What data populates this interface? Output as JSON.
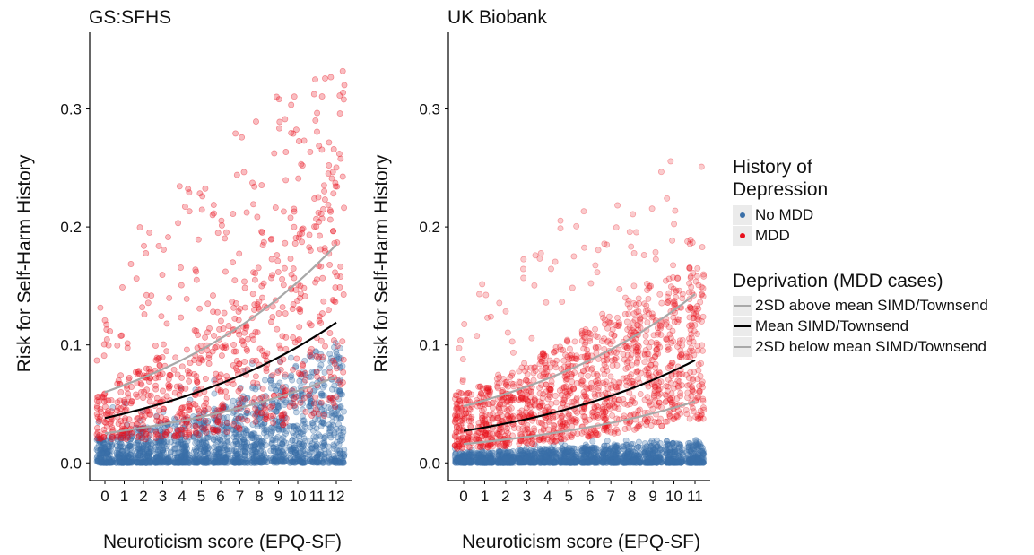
{
  "chart_data": [
    {
      "type": "scatter",
      "title": "GS:SFHS",
      "xlabel": "Neuroticism score (EPQ-SF)",
      "ylabel": "Risk for Self-Harm History",
      "x_categories": [
        "0",
        "1",
        "2",
        "3",
        "4",
        "5",
        "6",
        "7",
        "8",
        "9",
        "10",
        "11",
        "12"
      ],
      "yticks": [
        "0.0",
        "0.1",
        "0.2",
        "0.3"
      ],
      "ylim": [
        -0.015,
        0.365
      ],
      "point_series": [
        {
          "name": "No MDD",
          "color": "#3a6fa8",
          "typical_min": [
            0.0,
            0.0,
            0.0,
            0.0,
            0.0,
            0.0,
            0.0,
            0.0,
            0.0,
            0.0,
            0.0,
            0.0,
            0.0
          ],
          "typical_max": [
            0.022,
            0.026,
            0.03,
            0.034,
            0.038,
            0.043,
            0.05,
            0.058,
            0.066,
            0.076,
            0.085,
            0.095,
            0.105
          ],
          "outlier_max": 0.09
        },
        {
          "name": "MDD",
          "color": "#e8101c",
          "typical_min": [
            0.02,
            0.02,
            0.02,
            0.021,
            0.022,
            0.024,
            0.026,
            0.028,
            0.03,
            0.032,
            0.035,
            0.038,
            0.042
          ],
          "typical_max": [
            0.06,
            0.07,
            0.08,
            0.09,
            0.1,
            0.115,
            0.13,
            0.15,
            0.17,
            0.2,
            0.22,
            0.24,
            0.26
          ],
          "outlier_max": 0.334
        }
      ],
      "curves": [
        {
          "name": "2SD above mean SIMD/Townsend",
          "color": "#a8a8a8",
          "y0": 0.06,
          "y_end": 0.185
        },
        {
          "name": "Mean SIMD/Townsend",
          "color": "#000000",
          "y0": 0.038,
          "y_end": 0.119
        },
        {
          "name": "2SD below mean SIMD/Townsend",
          "color": "#a8a8a8",
          "y0": 0.025,
          "y_end": 0.073
        }
      ]
    },
    {
      "type": "scatter",
      "title": "UK Biobank",
      "xlabel": "Neuroticism score (EPQ-SF)",
      "ylabel": "Risk for Self-Harm History",
      "x_categories": [
        "0",
        "1",
        "2",
        "3",
        "4",
        "5",
        "6",
        "7",
        "8",
        "9",
        "10",
        "11"
      ],
      "yticks": [
        "0.0",
        "0.1",
        "0.2",
        "0.3"
      ],
      "ylim": [
        -0.015,
        0.365
      ],
      "point_series": [
        {
          "name": "No MDD",
          "color": "#3a6fa8",
          "typical_min": [
            0.0,
            0.0,
            0.0,
            0.0,
            0.0,
            0.0,
            0.0,
            0.0,
            0.0,
            0.0,
            0.0,
            0.0
          ],
          "typical_max": [
            0.009,
            0.009,
            0.01,
            0.011,
            0.012,
            0.013,
            0.014,
            0.015,
            0.016,
            0.017,
            0.018,
            0.019
          ],
          "outlier_max": 0.02
        },
        {
          "name": "MDD",
          "color": "#e8101c",
          "typical_min": [
            0.012,
            0.013,
            0.014,
            0.016,
            0.018,
            0.02,
            0.022,
            0.025,
            0.028,
            0.031,
            0.034,
            0.037
          ],
          "typical_max": [
            0.06,
            0.065,
            0.075,
            0.085,
            0.095,
            0.105,
            0.115,
            0.125,
            0.14,
            0.15,
            0.16,
            0.17
          ],
          "outlier_max": 0.266
        }
      ],
      "curves": [
        {
          "name": "2SD above mean SIMD/Townsend",
          "color": "#a8a8a8",
          "y0": 0.048,
          "y_end": 0.143
        },
        {
          "name": "Mean SIMD/Townsend",
          "color": "#000000",
          "y0": 0.027,
          "y_end": 0.087
        },
        {
          "name": "2SD below mean SIMD/Townsend",
          "color": "#a8a8a8",
          "y0": 0.016,
          "y_end": 0.052
        }
      ]
    }
  ],
  "legend": {
    "depression_title_line1": "History of",
    "depression_title_line2": "Depression",
    "depression_items": [
      {
        "label": "No MDD",
        "color": "#3a6fa8"
      },
      {
        "label": "MDD",
        "color": "#e8101c"
      }
    ],
    "deprivation_title": "Deprivation (MDD cases)",
    "deprivation_items": [
      {
        "label": "2SD above mean SIMD/Townsend",
        "color": "#a8a8a8"
      },
      {
        "label": "Mean SIMD/Townsend",
        "color": "#000000"
      },
      {
        "label": "2SD below mean SIMD/Townsend",
        "color": "#a8a8a8"
      }
    ]
  }
}
